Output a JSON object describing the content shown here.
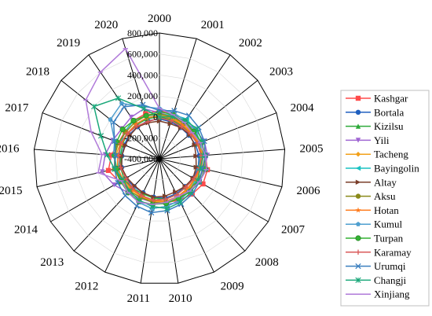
{
  "chart_data": {
    "type": "radar",
    "categories": [
      "2000",
      "2001",
      "2002",
      "2003",
      "2004",
      "2005",
      "2006",
      "2007",
      "2008",
      "2009",
      "2010",
      "2011",
      "2012",
      "2013",
      "2014",
      "2015",
      "2016",
      "2017",
      "2018",
      "2019",
      "2020"
    ],
    "rlim": [
      -400000,
      800000
    ],
    "ticks": [
      -400000,
      -200000,
      0,
      200000,
      400000,
      600000,
      800000
    ],
    "tick_labels": [
      "-400,000",
      "-200,000",
      "0",
      "200,000",
      "400,000",
      "600,000",
      "800,000"
    ],
    "grid": true,
    "legend_position": "right",
    "series": [
      {
        "name": "Kashgar",
        "color": "#ff4b4b",
        "marker": "square",
        "values": [
          60000,
          40000,
          20000,
          10000,
          30000,
          40000,
          70000,
          80000,
          60000,
          40000,
          20000,
          10000,
          0,
          0,
          40000,
          100000,
          60000,
          20000,
          20000,
          40000,
          50000
        ]
      },
      {
        "name": "Bortala",
        "color": "#1f5fbf",
        "marker": "circle",
        "values": [
          -20000,
          -30000,
          -40000,
          -40000,
          -30000,
          -20000,
          -20000,
          -30000,
          -40000,
          -30000,
          -20000,
          -30000,
          -40000,
          -40000,
          -30000,
          -30000,
          -40000,
          -40000,
          -30000,
          -30000,
          -20000
        ]
      },
      {
        "name": "Kizilsu",
        "color": "#2eaa3a",
        "marker": "triangle",
        "values": [
          0,
          -10000,
          -20000,
          -20000,
          -10000,
          0,
          -10000,
          -20000,
          -30000,
          -20000,
          -10000,
          -20000,
          -30000,
          -20000,
          -10000,
          -20000,
          -30000,
          -20000,
          -10000,
          -10000,
          0
        ]
      },
      {
        "name": "Yili",
        "color": "#a066d3",
        "marker": "triangle-down",
        "values": [
          40000,
          20000,
          30000,
          40000,
          60000,
          60000,
          40000,
          20000,
          40000,
          60000,
          40000,
          20000,
          20000,
          40000,
          100000,
          160000,
          120000,
          80000,
          60000,
          80000,
          100000
        ]
      },
      {
        "name": "Tacheng",
        "color": "#f2a01a",
        "marker": "diamond",
        "values": [
          20000,
          10000,
          0,
          0,
          10000,
          20000,
          10000,
          0,
          0,
          10000,
          20000,
          10000,
          0,
          0,
          20000,
          40000,
          20000,
          0,
          20000,
          40000,
          30000
        ]
      },
      {
        "name": "Bayingolin",
        "color": "#19c2c2",
        "marker": "triangle-left",
        "values": [
          20000,
          40000,
          60000,
          40000,
          20000,
          0,
          -20000,
          0,
          20000,
          40000,
          60000,
          80000,
          60000,
          40000,
          20000,
          0,
          -20000,
          0,
          20000,
          40000,
          30000
        ]
      },
      {
        "name": "Altay",
        "color": "#7a3e2a",
        "marker": "triangle-right",
        "values": [
          -40000,
          -50000,
          -40000,
          -30000,
          -40000,
          -50000,
          -40000,
          -30000,
          -40000,
          -50000,
          -40000,
          -30000,
          -40000,
          -50000,
          -40000,
          -30000,
          -40000,
          -50000,
          -40000,
          -30000,
          -40000
        ]
      },
      {
        "name": "Aksu",
        "color": "#8a8a1a",
        "marker": "circle",
        "values": [
          30000,
          20000,
          10000,
          20000,
          30000,
          40000,
          30000,
          20000,
          10000,
          20000,
          30000,
          20000,
          10000,
          20000,
          30000,
          40000,
          30000,
          20000,
          10000,
          20000,
          30000
        ]
      },
      {
        "name": "Hotan",
        "color": "#ff7a1a",
        "marker": "star",
        "values": [
          10000,
          0,
          -10000,
          -10000,
          0,
          10000,
          0,
          -10000,
          -10000,
          0,
          10000,
          0,
          -10000,
          -10000,
          0,
          10000,
          0,
          -10000,
          -10000,
          0,
          10000
        ]
      },
      {
        "name": "Kumul",
        "color": "#4f9fcf",
        "marker": "pentagon",
        "values": [
          80000,
          60000,
          40000,
          20000,
          20000,
          40000,
          60000,
          40000,
          20000,
          40000,
          60000,
          80000,
          60000,
          40000,
          20000,
          20000,
          40000,
          60000,
          200000,
          240000,
          120000
        ]
      },
      {
        "name": "Turpan",
        "color": "#33b233",
        "marker": "circle-half",
        "values": [
          50000,
          40000,
          30000,
          20000,
          30000,
          40000,
          50000,
          40000,
          30000,
          20000,
          30000,
          40000,
          50000,
          40000,
          30000,
          20000,
          30000,
          40000,
          50000,
          40000,
          30000
        ]
      },
      {
        "name": "Karamay",
        "color": "#d95a5a",
        "marker": "plus",
        "values": [
          -10000,
          -20000,
          -30000,
          -20000,
          -10000,
          0,
          -10000,
          -20000,
          -30000,
          -20000,
          -10000,
          0,
          -10000,
          -20000,
          -30000,
          -20000,
          -10000,
          0,
          -10000,
          -20000,
          -30000
        ]
      },
      {
        "name": "Urumqi",
        "color": "#3a7fbf",
        "marker": "x",
        "values": [
          60000,
          80000,
          100000,
          80000,
          60000,
          40000,
          20000,
          40000,
          60000,
          80000,
          100000,
          120000,
          100000,
          80000,
          60000,
          40000,
          20000,
          60000,
          160000,
          200000,
          140000
        ]
      },
      {
        "name": "Changji",
        "color": "#1aa87a",
        "marker": "asterisk",
        "values": [
          0,
          20000,
          40000,
          60000,
          40000,
          20000,
          0,
          20000,
          40000,
          60000,
          80000,
          60000,
          40000,
          20000,
          0,
          40000,
          100000,
          200000,
          400000,
          300000,
          100000
        ]
      },
      {
        "name": "Xinjiang",
        "color": "#b07ad9",
        "marker": "dash",
        "values": [
          80000,
          40000,
          20000,
          0,
          20000,
          40000,
          60000,
          40000,
          20000,
          0,
          20000,
          40000,
          60000,
          40000,
          20000,
          200000,
          150000,
          300000,
          500000,
          600000,
          700000
        ]
      }
    ]
  }
}
